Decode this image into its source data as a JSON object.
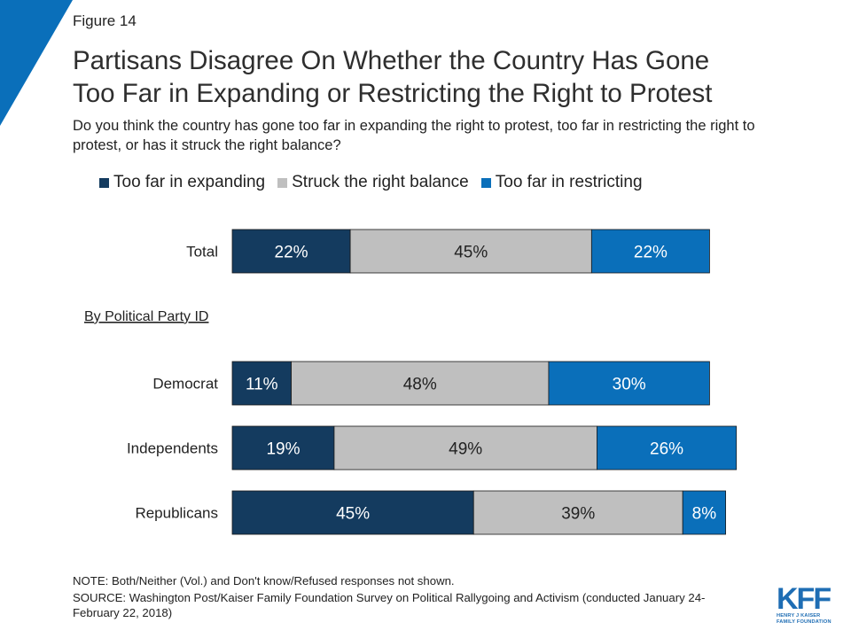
{
  "figure_label": "Figure 14",
  "title_lines": [
    "Partisans Disagree On Whether the Country Has Gone",
    "Too Far in Expanding or Restricting the Right to Protest"
  ],
  "subtitle": "Do you think the country has gone too far in expanding the right to protest, too far in restricting the right to protest, or has it struck the right balance?",
  "colors": {
    "corner": "#0a6fba",
    "expanding": "#143b5f",
    "balance": "#bfbfbf",
    "restricting": "#0a6fba"
  },
  "chart_data": {
    "type": "bar",
    "orientation": "horizontal",
    "stacked": true,
    "categories": [
      "Total",
      "Democrat",
      "Independents",
      "Republicans"
    ],
    "group_heading": "By Political Party ID",
    "series": [
      {
        "name": "Too far in expanding",
        "values": [
          22,
          11,
          19,
          45
        ],
        "labels": [
          "22%",
          "11%",
          "19%",
          "45%"
        ]
      },
      {
        "name": "Struck the right balance",
        "values": [
          45,
          48,
          49,
          39
        ],
        "labels": [
          "45%",
          "48%",
          "49%",
          "39%"
        ]
      },
      {
        "name": "Too far in restricting",
        "values": [
          22,
          30,
          26,
          8
        ],
        "labels": [
          "22%",
          "30%",
          "26%",
          "8%"
        ]
      }
    ],
    "legend_position": "top",
    "grid": false
  },
  "notes": [
    "NOTE: Both/Neither (Vol.) and Don't know/Refused responses not shown.",
    "SOURCE: Washington Post/Kaiser Family Foundation Survey on Political Rallygoing and Activism (conducted January 24-February 22, 2018)"
  ],
  "logo": {
    "mark": "KFF",
    "line1": "HENRY J KAISER",
    "line2": "FAMILY FOUNDATION"
  }
}
